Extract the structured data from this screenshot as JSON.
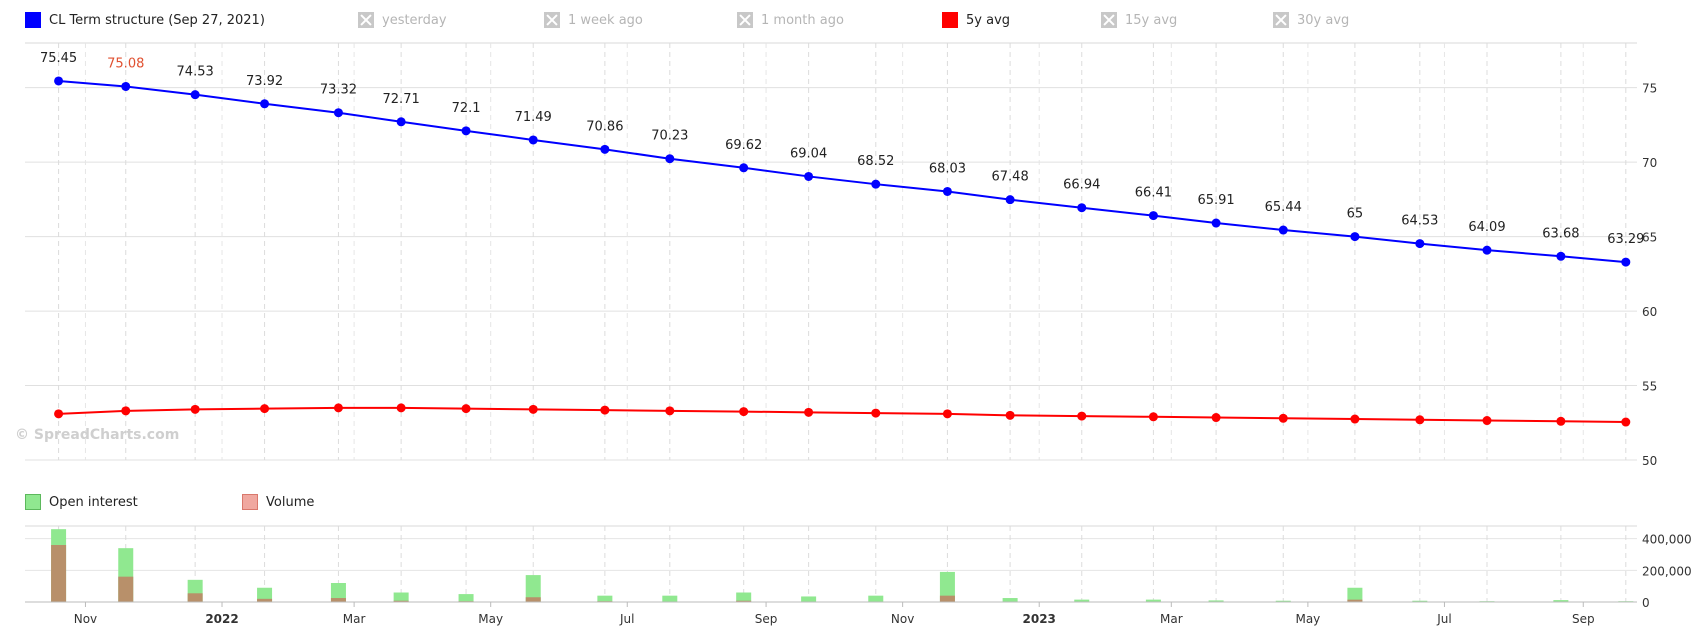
{
  "legend_top": [
    {
      "label": "CL Term structure (Sep 27, 2021)",
      "color": "#0000ff",
      "enabled": true
    },
    {
      "label": "yesterday",
      "color": "#c8c8c8",
      "enabled": false
    },
    {
      "label": "1 week ago",
      "color": "#c8c8c8",
      "enabled": false
    },
    {
      "label": "1 month ago",
      "color": "#c8c8c8",
      "enabled": false
    },
    {
      "label": "5y avg",
      "color": "#ff0000",
      "enabled": true
    },
    {
      "label": "15y avg",
      "color": "#c8c8c8",
      "enabled": false
    },
    {
      "label": "30y avg",
      "color": "#c8c8c8",
      "enabled": false
    }
  ],
  "legend_bottom": [
    {
      "label": "Open interest",
      "color": "#90e890"
    },
    {
      "label": "Volume",
      "color": "#f0a8a0"
    }
  ],
  "watermark": "© SpreadCharts.com",
  "chart_data": [
    {
      "type": "line",
      "x": [
        "2021-10-20",
        "2021-11-19",
        "2021-12-20",
        "2022-01-20",
        "2022-02-22",
        "2022-03-22",
        "2022-04-20",
        "2022-05-20",
        "2022-06-21",
        "2022-07-20",
        "2022-08-22",
        "2022-09-20",
        "2022-10-20",
        "2022-11-21",
        "2022-12-19",
        "2023-01-20",
        "2023-02-21",
        "2023-03-21",
        "2023-04-20",
        "2023-05-22",
        "2023-06-20",
        "2023-07-20",
        "2023-08-22",
        "2023-09-20"
      ],
      "series": [
        {
          "name": "CL Term structure (Sep 27, 2021)",
          "color": "#0000ff",
          "values": [
            75.45,
            75.08,
            74.53,
            73.92,
            73.32,
            72.71,
            72.1,
            71.49,
            70.86,
            70.23,
            69.62,
            69.04,
            68.52,
            68.03,
            67.48,
            66.94,
            66.41,
            65.91,
            65.44,
            65,
            64.53,
            64.09,
            63.68,
            63.29
          ]
        },
        {
          "name": "5y avg",
          "color": "#ff0000",
          "values": [
            53.1,
            53.3,
            53.4,
            53.45,
            53.5,
            53.5,
            53.45,
            53.4,
            53.35,
            53.3,
            53.25,
            53.2,
            53.15,
            53.1,
            53.0,
            52.95,
            52.9,
            52.85,
            52.8,
            52.75,
            52.7,
            52.65,
            52.6,
            52.55
          ]
        }
      ],
      "data_labels": [
        "75.45",
        "75.08",
        "74.53",
        "73.92",
        "73.32",
        "72.71",
        "72.1",
        "71.49",
        "70.86",
        "70.23",
        "69.62",
        "69.04",
        "68.52",
        "68.03",
        "67.48",
        "66.94",
        "66.41",
        "65.91",
        "65.44",
        "65",
        "64.53",
        "64.09",
        "63.68",
        "63.29"
      ],
      "data_label_colors": [
        "#222222",
        "#e05030"
      ],
      "highlight_index": 1,
      "ylim": [
        50,
        78
      ],
      "yticks": [
        50,
        55,
        60,
        65,
        70,
        75
      ],
      "ytick_labels": [
        "50",
        "55",
        "60",
        "65",
        "70",
        "75"
      ],
      "grid": true
    },
    {
      "type": "bar",
      "x": [
        "2021-10-20",
        "2021-11-19",
        "2021-12-20",
        "2022-01-20",
        "2022-02-22",
        "2022-03-22",
        "2022-04-20",
        "2022-05-20",
        "2022-06-21",
        "2022-07-20",
        "2022-08-22",
        "2022-09-20",
        "2022-10-20",
        "2022-11-21",
        "2022-12-19",
        "2023-01-20",
        "2023-02-21",
        "2023-03-21",
        "2023-04-20",
        "2023-05-22",
        "2023-06-20",
        "2023-07-20",
        "2023-08-22",
        "2023-09-20"
      ],
      "series": [
        {
          "name": "Open interest",
          "color": "#90e890",
          "values": [
            460000,
            340000,
            140000,
            90000,
            120000,
            60000,
            50000,
            170000,
            40000,
            40000,
            60000,
            35000,
            40000,
            190000,
            25000,
            15000,
            15000,
            10000,
            8000,
            90000,
            8000,
            5000,
            12000,
            5000
          ]
        },
        {
          "name": "Volume",
          "color": "#b8906a",
          "values": [
            360000,
            160000,
            55000,
            20000,
            25000,
            8000,
            5000,
            30000,
            5000,
            3000,
            8000,
            3000,
            3000,
            40000,
            2000,
            1000,
            1000,
            1000,
            1000,
            15000,
            1000,
            500,
            1000,
            500
          ]
        }
      ],
      "ylim": [
        0,
        480000
      ],
      "yticks": [
        0,
        200000,
        400000
      ],
      "ytick_labels": [
        "0",
        "200,000",
        "400,000"
      ]
    }
  ],
  "x_axis": {
    "ticks": [
      {
        "date": "2021-11-01",
        "label": "Nov",
        "bold": false
      },
      {
        "date": "2022-01-01",
        "label": "2022",
        "bold": true
      },
      {
        "date": "2022-03-01",
        "label": "Mar",
        "bold": false
      },
      {
        "date": "2022-05-01",
        "label": "May",
        "bold": false
      },
      {
        "date": "2022-07-01",
        "label": "Jul",
        "bold": false
      },
      {
        "date": "2022-09-01",
        "label": "Sep",
        "bold": false
      },
      {
        "date": "2022-11-01",
        "label": "Nov",
        "bold": false
      },
      {
        "date": "2023-01-01",
        "label": "2023",
        "bold": true
      },
      {
        "date": "2023-03-01",
        "label": "Mar",
        "bold": false
      },
      {
        "date": "2023-05-01",
        "label": "May",
        "bold": false
      },
      {
        "date": "2023-07-01",
        "label": "Jul",
        "bold": false
      },
      {
        "date": "2023-09-01",
        "label": "Sep",
        "bold": false
      }
    ],
    "range": [
      "2021-10-05",
      "2023-09-25"
    ]
  }
}
